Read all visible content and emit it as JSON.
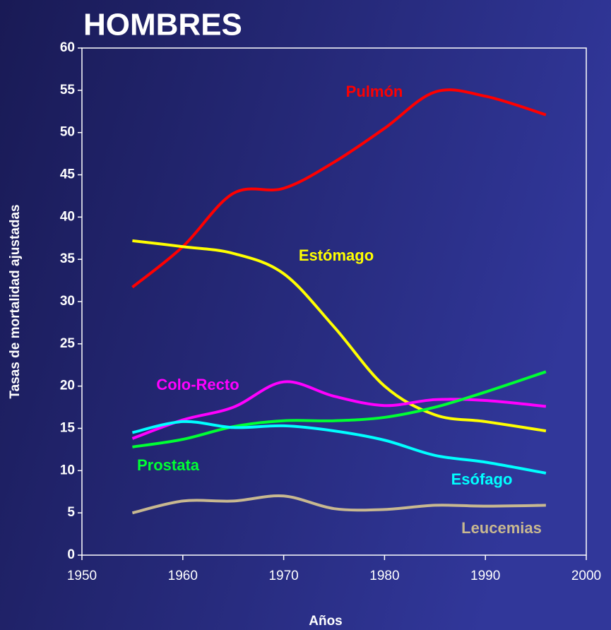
{
  "chart_data": {
    "type": "line",
    "title": "HOMBRES",
    "x_label": "Años",
    "y_label": "Tasas de mortalidad ajustadas",
    "x": [
      1955,
      1960,
      1965,
      1970,
      1975,
      1980,
      1985,
      1990,
      1996
    ],
    "series": [
      {
        "name": "Pulmón",
        "color": "#ff0000",
        "values": [
          31.7,
          36.5,
          42.8,
          43.4,
          46.5,
          50.5,
          54.8,
          54.3,
          52.1
        ]
      },
      {
        "name": "Estómago",
        "color": "#ffff00",
        "values": [
          37.2,
          36.5,
          35.7,
          33.3,
          27,
          20,
          16.6,
          15.8,
          14.7
        ]
      },
      {
        "name": "Colo-Recto",
        "color": "#ff00ff",
        "values": [
          13.8,
          16,
          17.5,
          20.5,
          18.8,
          17.7,
          18.4,
          18.3,
          17.6
        ]
      },
      {
        "name": "Prostata",
        "color": "#00ff33",
        "values": [
          12.8,
          13.7,
          15.2,
          15.9,
          15.9,
          16.3,
          17.5,
          19.3,
          21.7
        ]
      },
      {
        "name": "Esófago",
        "color": "#00ffff",
        "values": [
          14.5,
          15.8,
          15.1,
          15.3,
          14.7,
          13.6,
          11.8,
          11,
          9.7
        ]
      },
      {
        "name": "Leucemias",
        "color": "#c8b890",
        "values": [
          5,
          6.4,
          6.4,
          7,
          5.5,
          5.4,
          5.9,
          5.8,
          5.9
        ]
      }
    ],
    "xlim": [
      1950,
      2000
    ],
    "xticks": [
      1950,
      1960,
      1970,
      1980,
      1990,
      2000
    ],
    "ylim": [
      0,
      60
    ],
    "yticks": [
      0,
      5,
      10,
      15,
      20,
      25,
      30,
      35,
      40,
      45,
      50,
      55,
      60
    ]
  }
}
